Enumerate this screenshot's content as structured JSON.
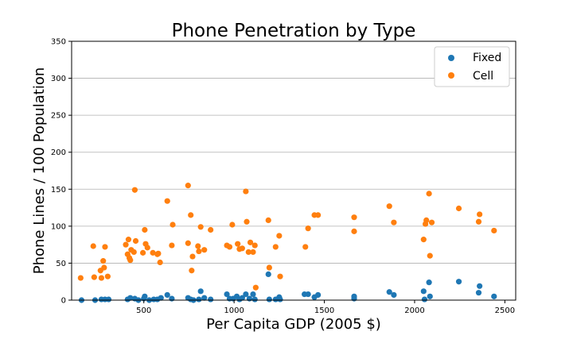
{
  "chart_data": {
    "type": "scatter",
    "title": "Phone Penetration by Type",
    "xlabel": "Per Capita GDP (2005 $)",
    "ylabel": "Phone Lines / 100 Population",
    "xlim": [
      100,
      2560
    ],
    "ylim": [
      0,
      350
    ],
    "xticks": [
      500,
      1000,
      1500,
      2000,
      2500
    ],
    "yticks": [
      0,
      50,
      100,
      150,
      200,
      250,
      300,
      350
    ],
    "grid": "y",
    "legend": "top-right",
    "series": [
      {
        "name": "Fixed",
        "color": "#1f77b4",
        "points": [
          [
            155,
            0
          ],
          [
            230,
            0
          ],
          [
            265,
            1
          ],
          [
            285,
            1
          ],
          [
            305,
            1
          ],
          [
            410,
            1
          ],
          [
            425,
            3
          ],
          [
            450,
            2
          ],
          [
            470,
            0
          ],
          [
            500,
            2
          ],
          [
            505,
            5
          ],
          [
            530,
            0
          ],
          [
            555,
            1
          ],
          [
            575,
            1
          ],
          [
            595,
            3
          ],
          [
            630,
            7
          ],
          [
            655,
            2
          ],
          [
            745,
            3
          ],
          [
            760,
            1
          ],
          [
            775,
            0
          ],
          [
            805,
            1
          ],
          [
            815,
            12
          ],
          [
            835,
            3
          ],
          [
            870,
            1
          ],
          [
            960,
            8
          ],
          [
            975,
            2
          ],
          [
            995,
            2
          ],
          [
            1015,
            5
          ],
          [
            1030,
            1
          ],
          [
            1045,
            3
          ],
          [
            1065,
            8
          ],
          [
            1085,
            2
          ],
          [
            1105,
            8
          ],
          [
            1115,
            1
          ],
          [
            1190,
            35
          ],
          [
            1195,
            1
          ],
          [
            1230,
            1
          ],
          [
            1250,
            4
          ],
          [
            1255,
            1
          ],
          [
            1390,
            8
          ],
          [
            1410,
            8
          ],
          [
            1445,
            4
          ],
          [
            1465,
            7
          ],
          [
            1665,
            2
          ],
          [
            1665,
            5
          ],
          [
            1860,
            11
          ],
          [
            1885,
            7
          ],
          [
            2050,
            12
          ],
          [
            2055,
            1
          ],
          [
            2080,
            24
          ],
          [
            2085,
            5
          ],
          [
            2245,
            25
          ],
          [
            2355,
            10
          ],
          [
            2360,
            19
          ],
          [
            2440,
            5
          ]
        ]
      },
      {
        "name": "Cell",
        "color": "#ff7f0e",
        "points": [
          [
            150,
            30
          ],
          [
            220,
            73
          ],
          [
            225,
            31
          ],
          [
            260,
            40
          ],
          [
            265,
            30
          ],
          [
            275,
            53
          ],
          [
            280,
            44
          ],
          [
            285,
            72
          ],
          [
            300,
            32
          ],
          [
            400,
            75
          ],
          [
            410,
            62
          ],
          [
            415,
            82
          ],
          [
            420,
            57
          ],
          [
            425,
            54
          ],
          [
            430,
            68
          ],
          [
            445,
            65
          ],
          [
            450,
            149
          ],
          [
            455,
            80
          ],
          [
            495,
            64
          ],
          [
            505,
            95
          ],
          [
            510,
            76
          ],
          [
            520,
            71
          ],
          [
            550,
            64
          ],
          [
            575,
            62
          ],
          [
            580,
            63
          ],
          [
            590,
            51
          ],
          [
            630,
            134
          ],
          [
            655,
            74
          ],
          [
            660,
            102
          ],
          [
            745,
            155
          ],
          [
            745,
            77
          ],
          [
            760,
            115
          ],
          [
            765,
            40
          ],
          [
            770,
            59
          ],
          [
            800,
            73
          ],
          [
            805,
            66
          ],
          [
            815,
            99
          ],
          [
            835,
            68
          ],
          [
            870,
            95
          ],
          [
            960,
            74
          ],
          [
            975,
            72
          ],
          [
            990,
            102
          ],
          [
            1020,
            76
          ],
          [
            1030,
            69
          ],
          [
            1045,
            70
          ],
          [
            1065,
            147
          ],
          [
            1070,
            106
          ],
          [
            1080,
            65
          ],
          [
            1090,
            78
          ],
          [
            1105,
            65
          ],
          [
            1115,
            74
          ],
          [
            1120,
            17
          ],
          [
            1190,
            108
          ],
          [
            1195,
            44
          ],
          [
            1230,
            72
          ],
          [
            1250,
            87
          ],
          [
            1255,
            32
          ],
          [
            1395,
            72
          ],
          [
            1410,
            97
          ],
          [
            1445,
            115
          ],
          [
            1465,
            115
          ],
          [
            1665,
            112
          ],
          [
            1665,
            93
          ],
          [
            1860,
            127
          ],
          [
            1885,
            105
          ],
          [
            2050,
            82
          ],
          [
            2060,
            103
          ],
          [
            2065,
            108
          ],
          [
            2080,
            144
          ],
          [
            2085,
            60
          ],
          [
            2095,
            105
          ],
          [
            2245,
            124
          ],
          [
            2355,
            106
          ],
          [
            2360,
            116
          ],
          [
            2440,
            94
          ]
        ]
      }
    ]
  }
}
